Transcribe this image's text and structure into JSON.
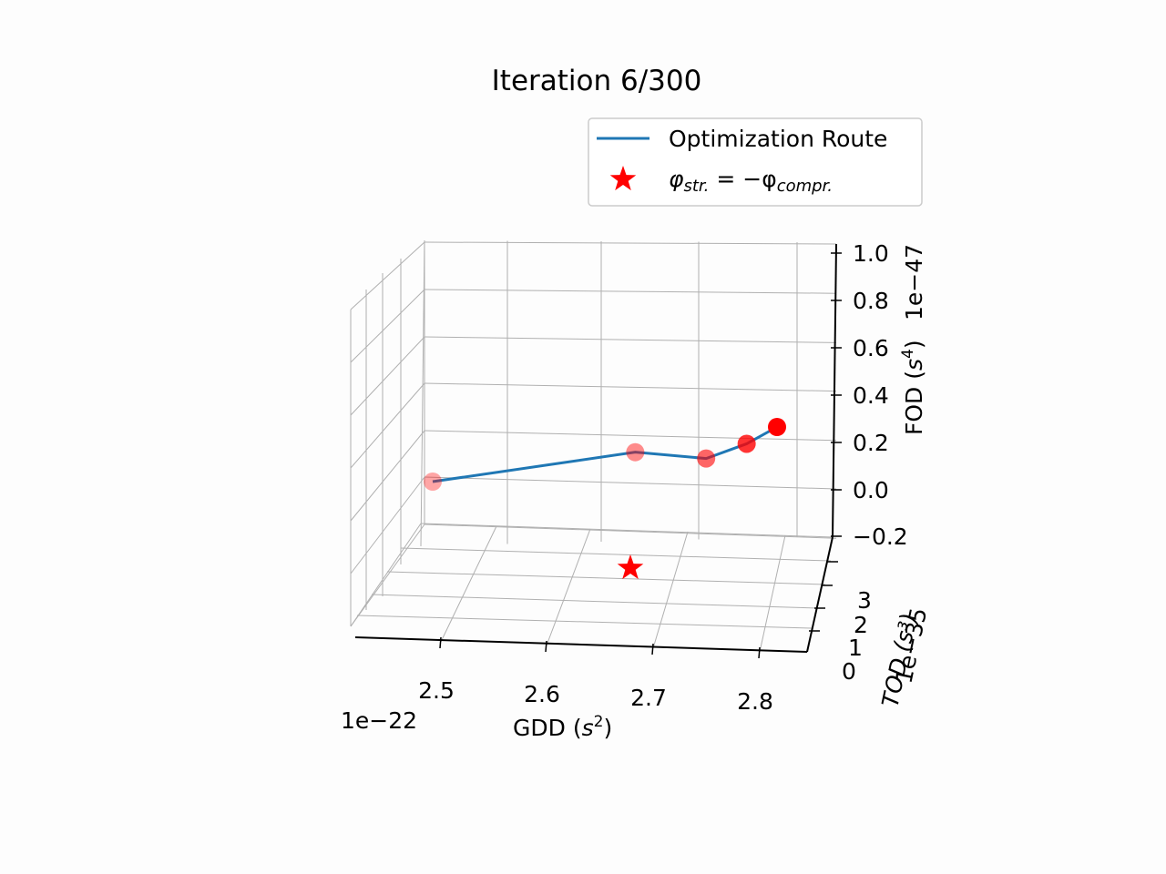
{
  "chart_data": {
    "type": "line",
    "title": "Iteration 6/300",
    "legend": {
      "placement": "top-right",
      "entries": [
        {
          "label": "Optimization Route",
          "marker": "line",
          "color": "#1f77b4"
        },
        {
          "label_main": "φ",
          "label_sub1": "str.",
          "label_mid": " = −φ",
          "label_sub2": "compr.",
          "marker": "star",
          "color": "#ff0000"
        }
      ]
    },
    "axes": {
      "x": {
        "label_main": "GDD (",
        "label_sup": "2",
        "label_unit": "s",
        "label_close": ")",
        "offset_text": "1e−22",
        "ticks": [
          "2.5",
          "2.6",
          "2.7",
          "2.8"
        ]
      },
      "y": {
        "label": "TOD (s³)",
        "offset_text": "1e−35",
        "ticks": [
          "0",
          "1",
          "2",
          "3"
        ]
      },
      "z": {
        "label_main": "FOD (",
        "label_unit": "s",
        "label_sup": "4",
        "label_close": ")",
        "offset_text": "1e−47",
        "ticks": [
          "−0.2",
          "0.0",
          "0.2",
          "0.4",
          "0.6",
          "0.8",
          "1.0"
        ],
        "range": [
          -0.2,
          1.0
        ]
      }
    },
    "grid": true,
    "series": [
      {
        "name": "Optimization Route",
        "color": "#1f77b4",
        "points": [
          {
            "x": 2.47,
            "y": 0.2,
            "z": 0.02
          },
          {
            "x": 2.67,
            "y": 0.2,
            "z": 0.16
          },
          {
            "x": 2.74,
            "y": 0.2,
            "z": 0.13
          },
          {
            "x": 2.78,
            "y": 0.2,
            "z": 0.2
          },
          {
            "x": 2.81,
            "y": 0.2,
            "z": 0.28
          }
        ],
        "marker_color": "#ff0000"
      }
    ],
    "target": {
      "x": 2.69,
      "y": 0.5,
      "z": -0.25,
      "marker": "star",
      "color": "#ff0000"
    }
  }
}
